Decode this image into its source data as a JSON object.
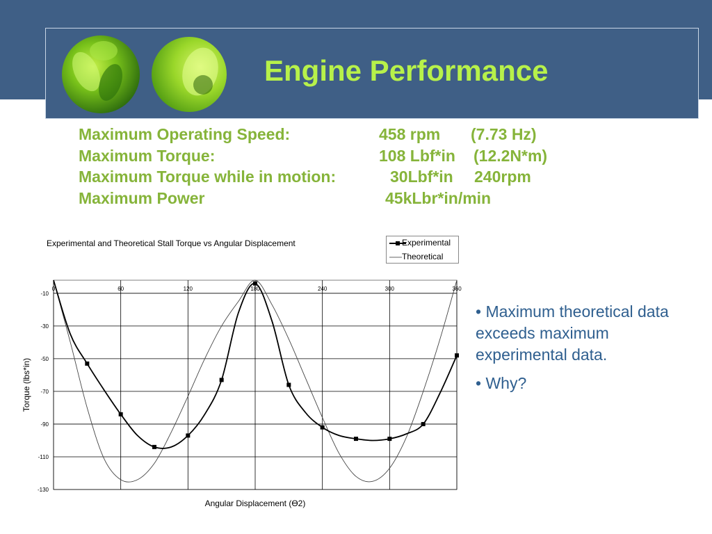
{
  "slide": {
    "title": "Engine Performance",
    "specs": [
      {
        "label": "Maximum Operating Speed:",
        "value": "458 rpm",
        "extra": "(7.73 Hz)"
      },
      {
        "label": "Maximum Torque:",
        "value": "108 Lbf*in",
        "extra": "(12.2N*m)"
      },
      {
        "label": "Maximum Torque while in motion:",
        "value": "30Lbf*in",
        "extra": "240rpm"
      },
      {
        "label": "Maximum Power",
        "value": "45kLbr*in/min",
        "extra": ""
      }
    ],
    "bullets": [
      "• Maximum theoretical data exceeds maximum experimental data.",
      "• Why?"
    ]
  },
  "colors": {
    "header_band": "#3f5f86",
    "title_text": "#b7f14a",
    "spec_text": "#86b43a",
    "bullet_text": "#2f5f8f"
  },
  "chart_data": {
    "type": "line",
    "title": "Experimental and Theoretical Stall Torque vs Angular Displacement",
    "xlabel": "Angular Displacement (ϴ2)",
    "ylabel": "Torque (lbs*in)",
    "xlim": [
      0,
      360
    ],
    "ylim": [
      -130,
      -2
    ],
    "x_ticks": [
      0,
      60,
      120,
      180,
      240,
      300,
      360
    ],
    "x_tick_labels": [
      "0",
      "60",
      "120",
      "180",
      "240",
      "300",
      "360"
    ],
    "y_ticks": [
      -10,
      -30,
      -50,
      -70,
      -90,
      -110,
      -130
    ],
    "grid": true,
    "legend_position": "top-right",
    "series": [
      {
        "name": "Experimental",
        "color": "#000000",
        "marker": "square",
        "x": [
          0,
          15,
          30,
          45,
          60,
          75,
          90,
          105,
          120,
          135,
          150,
          165,
          180,
          195,
          210,
          225,
          240,
          255,
          270,
          285,
          300,
          315,
          330,
          345,
          360
        ],
        "y": [
          -2,
          -35,
          -53,
          -69,
          -84,
          -97,
          -104,
          -104,
          -97,
          -84,
          -63,
          -22,
          -4,
          -27,
          -66,
          -83,
          -92,
          -97,
          -99,
          -100,
          -99,
          -96,
          -90,
          -71,
          -48
        ],
        "markers_x": [
          30,
          60,
          90,
          120,
          150,
          180,
          210,
          240,
          270,
          300,
          330,
          360
        ],
        "markers_y": [
          -53,
          -84,
          -104,
          -97,
          -63,
          -4,
          -66,
          -92,
          -99,
          -99,
          -90,
          -48
        ]
      },
      {
        "name": "Theoretical",
        "color": "#444444",
        "marker": "none",
        "x": [
          0,
          15,
          30,
          45,
          60,
          75,
          90,
          105,
          120,
          135,
          150,
          165,
          180,
          195,
          210,
          225,
          240,
          255,
          270,
          285,
          300,
          315,
          330,
          345,
          360
        ],
        "y": [
          -2,
          -40,
          -80,
          -111,
          -124,
          -124,
          -114,
          -95,
          -73,
          -50,
          -30,
          -15,
          -2,
          -17,
          -38,
          -62,
          -86,
          -108,
          -122,
          -125,
          -117,
          -98,
          -70,
          -38,
          -2
        ]
      }
    ]
  }
}
